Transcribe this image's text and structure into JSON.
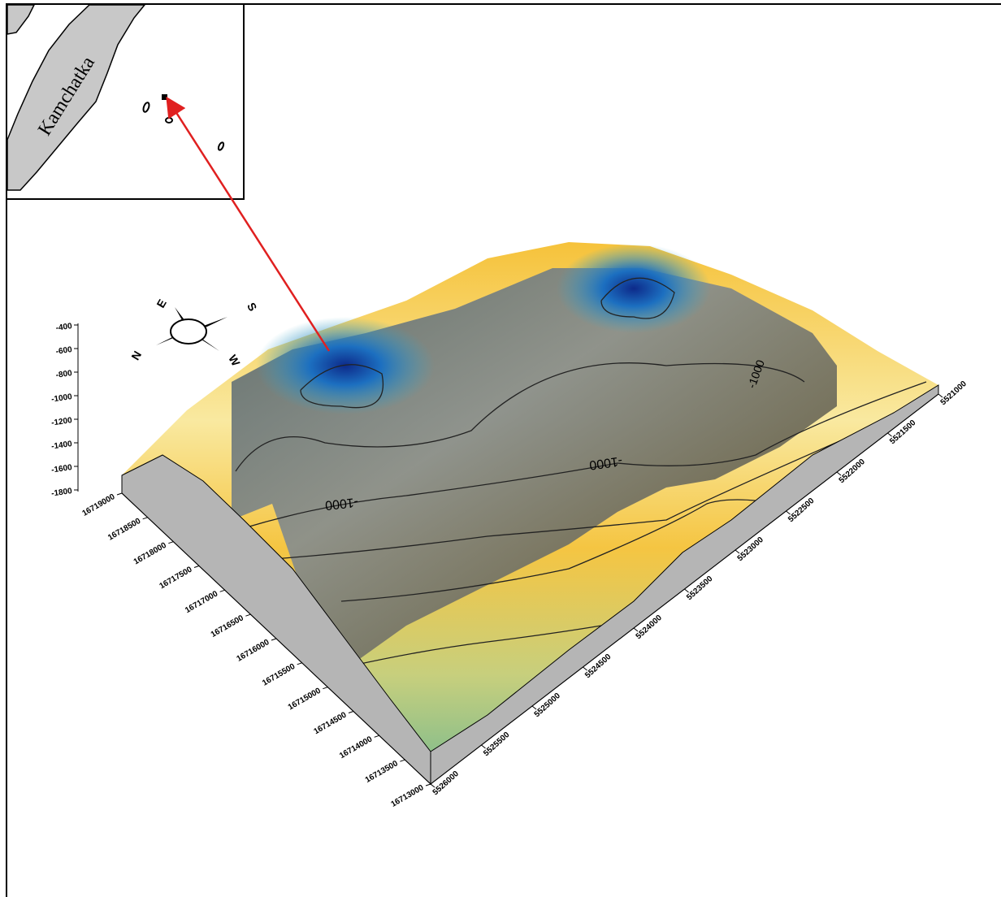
{
  "inset": {
    "label": "Kamchatka"
  },
  "compass": {
    "north": "N",
    "east": "E",
    "south": "S",
    "west": "W"
  },
  "axes": {
    "z_ticks": [
      -400,
      -600,
      -800,
      -1000,
      -1200,
      -1400,
      -1600,
      -1800
    ],
    "x_ticks": [
      16719000,
      16718500,
      16718000,
      16717500,
      16717000,
      16716500,
      16716000,
      16715500,
      16715000,
      16714500,
      16714000,
      16713500,
      16713000
    ],
    "y_ticks": [
      5526000,
      5525500,
      5525000,
      5524500,
      5524000,
      5523500,
      5523000,
      5522500,
      5522000,
      5521500,
      5521000
    ]
  },
  "contour_labels": [
    "-1000",
    "-1000",
    "-1000"
  ]
}
